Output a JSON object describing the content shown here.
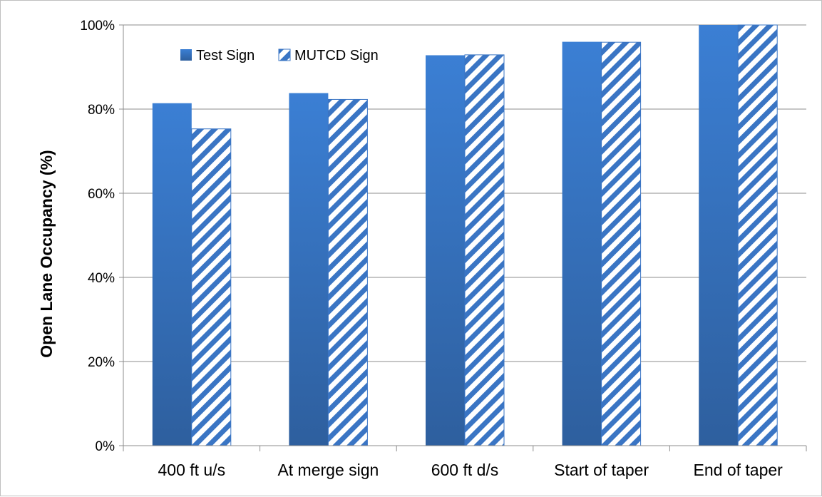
{
  "chart_data": {
    "type": "bar",
    "ylabel": "Open Lane Occupancy (%)",
    "xlabel": "",
    "categories": [
      "400 ft u/s",
      "At merge sign",
      "600 ft d/s",
      "Start of taper",
      "End of taper"
    ],
    "series": [
      {
        "name": "Test Sign",
        "values": [
          81.4,
          83.8,
          92.8,
          96.0,
          100.0
        ],
        "color": "#3a75c4",
        "pattern": "solid-gradient"
      },
      {
        "name": "MUTCD Sign",
        "values": [
          75.3,
          82.3,
          92.9,
          95.9,
          100.0
        ],
        "color": "#3a75c4",
        "pattern": "diagonal-stripes"
      }
    ],
    "ylim": [
      0,
      100
    ],
    "yticks": [
      "0%",
      "20%",
      "40%",
      "60%",
      "80%",
      "100%"
    ],
    "grid": true,
    "legend": "top-left"
  }
}
